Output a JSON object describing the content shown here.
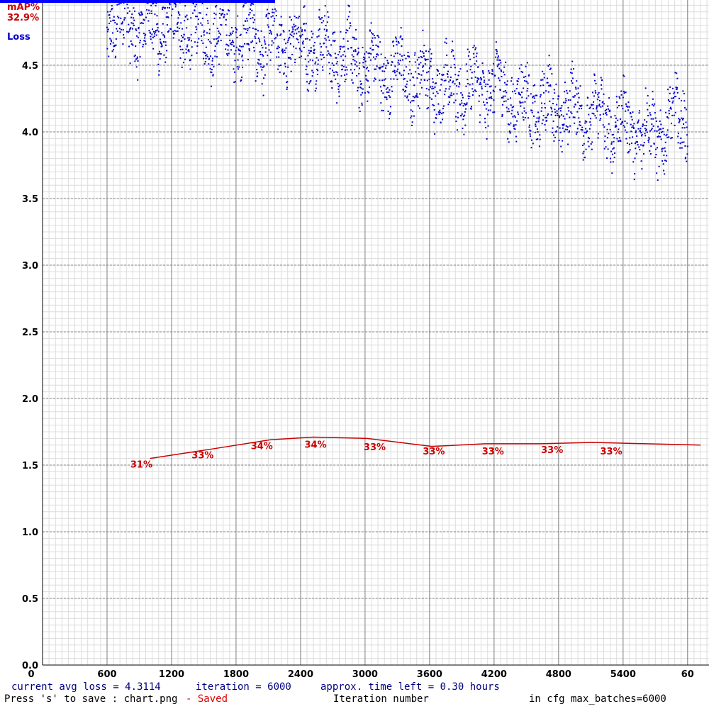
{
  "chart_data": {
    "type": "scatter",
    "xlim": [
      0,
      6000
    ],
    "ylim": [
      0,
      5
    ],
    "xticks": [
      "0",
      "600",
      "1200",
      "1800",
      "2400",
      "3000",
      "3600",
      "4200",
      "4800",
      "5400",
      "60"
    ],
    "yticks": [
      "0.0",
      "0.5",
      "1.0",
      "1.5",
      "2.0",
      "2.5",
      "3.0",
      "3.5",
      "4.0",
      "4.5"
    ],
    "grid": true,
    "legend": {
      "map_label": "mAP%",
      "map_value": "32.9%",
      "loss_label": "Loss"
    },
    "loss_trend": [
      [
        600,
        4.85
      ],
      [
        900,
        4.78
      ],
      [
        1200,
        4.8
      ],
      [
        1500,
        4.75
      ],
      [
        1800,
        4.72
      ],
      [
        2100,
        4.65
      ],
      [
        2400,
        4.68
      ],
      [
        2700,
        4.6
      ],
      [
        3000,
        4.5
      ],
      [
        3300,
        4.45
      ],
      [
        3600,
        4.38
      ],
      [
        3900,
        4.32
      ],
      [
        4200,
        4.35
      ],
      [
        4500,
        4.2
      ],
      [
        4800,
        4.18
      ],
      [
        5100,
        4.12
      ],
      [
        5400,
        4.05
      ],
      [
        5700,
        3.98
      ],
      [
        6000,
        4.15
      ]
    ],
    "map_series": {
      "x": [
        880,
        1450,
        2000,
        2400,
        2900,
        3500,
        4000,
        4500,
        5000,
        5500,
        6000
      ],
      "y": [
        1.55,
        1.62,
        1.69,
        1.71,
        1.7,
        1.64,
        1.66,
        1.66,
        1.67,
        1.66,
        1.65
      ]
    },
    "map_labels": [
      {
        "x": 880,
        "y": 1.55,
        "label": "31%"
      },
      {
        "x": 1450,
        "y": 1.62,
        "label": "33%"
      },
      {
        "x": 2000,
        "y": 1.69,
        "label": "34%"
      },
      {
        "x": 2500,
        "y": 1.7,
        "label": "34%"
      },
      {
        "x": 3050,
        "y": 1.68,
        "label": "33%"
      },
      {
        "x": 3600,
        "y": 1.65,
        "label": "33%"
      },
      {
        "x": 4150,
        "y": 1.65,
        "label": "33%"
      },
      {
        "x": 4700,
        "y": 1.66,
        "label": "33%"
      },
      {
        "x": 5250,
        "y": 1.65,
        "label": "33%"
      }
    ]
  },
  "footer": {
    "avg_loss": "current avg loss = 4.3114",
    "iteration": "iteration = 6000",
    "time_left": "approx. time left = 0.30 hours",
    "save_hint": "Press 's' to save : chart.png",
    "saved": "- Saved",
    "xlabel": "Iteration number",
    "max_batches": "in cfg max_batches=6000"
  }
}
